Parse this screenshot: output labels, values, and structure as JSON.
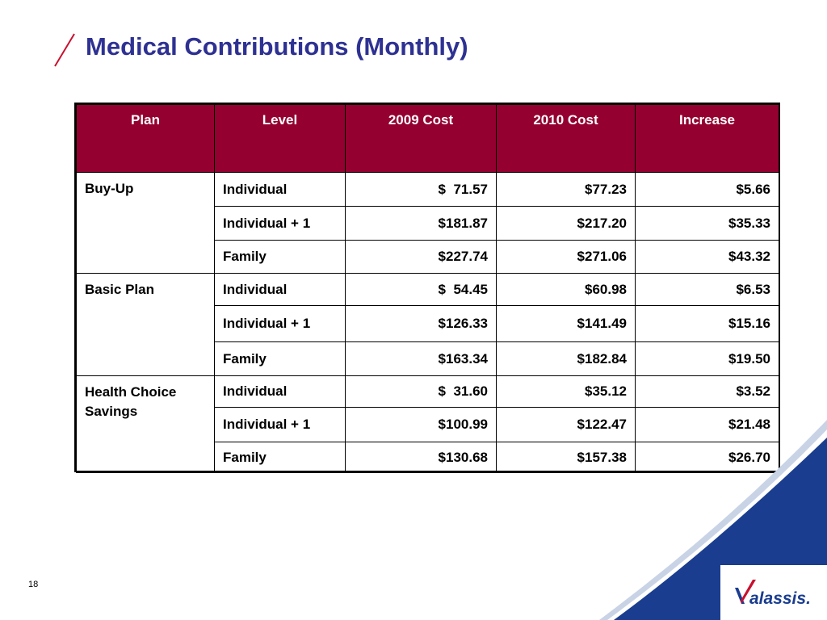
{
  "slide": {
    "title": "Medical Contributions (Monthly)",
    "page_number": "18",
    "logo_text": "Valassis."
  },
  "table": {
    "headers": [
      "Plan",
      "Level",
      "2009 Cost",
      "2010 Cost",
      "Increase"
    ],
    "groups": [
      {
        "plan": "Buy-Up",
        "rows": [
          {
            "level": "Individual",
            "cost_2009": "$  71.57",
            "cost_2010": "$77.23",
            "increase": "$5.66"
          },
          {
            "level": "Individual + 1",
            "cost_2009": "$181.87",
            "cost_2010": "$217.20",
            "increase": "$35.33"
          },
          {
            "level": "Family",
            "cost_2009": "$227.74",
            "cost_2010": "$271.06",
            "increase": "$43.32"
          }
        ]
      },
      {
        "plan": "Basic Plan",
        "rows": [
          {
            "level": "Individual",
            "cost_2009": "$  54.45",
            "cost_2010": "$60.98",
            "increase": "$6.53"
          },
          {
            "level": "Individual + 1",
            "cost_2009": "$126.33",
            "cost_2010": "$141.49",
            "increase": "$15.16"
          },
          {
            "level": "Family",
            "cost_2009": "$163.34",
            "cost_2010": "$182.84",
            "increase": "$19.50"
          }
        ]
      },
      {
        "plan": "Health Choice Savings",
        "rows": [
          {
            "level": "Individual",
            "cost_2009": "$  31.60",
            "cost_2010": "$35.12",
            "increase": "$3.52"
          },
          {
            "level": "Individual + 1",
            "cost_2009": "$100.99",
            "cost_2010": "$122.47",
            "increase": "$21.48"
          },
          {
            "level": "Family",
            "cost_2009": "$130.68",
            "cost_2010": "$157.38",
            "increase": "$26.70"
          }
        ]
      }
    ]
  },
  "colors": {
    "title": "#2e3192",
    "header_bg": "#940030",
    "header_text": "#ffffff",
    "accent_blue": "#1a3d8f",
    "accent_red": "#c8102e"
  }
}
